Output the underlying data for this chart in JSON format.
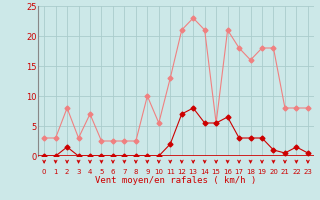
{
  "hours": [
    0,
    1,
    2,
    3,
    4,
    5,
    6,
    7,
    8,
    9,
    10,
    11,
    12,
    13,
    14,
    15,
    16,
    17,
    18,
    19,
    20,
    21,
    22,
    23
  ],
  "rafales": [
    3,
    3,
    8,
    3,
    7,
    2.5,
    2.5,
    2.5,
    2.5,
    10,
    5.5,
    13,
    21,
    23,
    21,
    5.5,
    21,
    18,
    16,
    18,
    18,
    8,
    8,
    8
  ],
  "vent_moyen": [
    0,
    0,
    1.5,
    0,
    0,
    0,
    0,
    0,
    0,
    0,
    0,
    2,
    7,
    8,
    5.5,
    5.5,
    6.5,
    3,
    3,
    3,
    1,
    0.5,
    1.5,
    0.5
  ],
  "color_rafales": "#f08080",
  "color_vent": "#cc0000",
  "bg_color": "#cce8e8",
  "grid_color": "#aacccc",
  "xlabel": "Vent moyen/en rafales ( km/h )",
  "xlabel_color": "#cc0000",
  "arrow_color": "#cc0000",
  "tick_color": "#cc0000",
  "axis_line_color": "#cc0000",
  "ylim": [
    0,
    25
  ],
  "yticks": [
    0,
    5,
    10,
    15,
    20,
    25
  ],
  "marker_size": 2.5,
  "line_width": 0.8
}
